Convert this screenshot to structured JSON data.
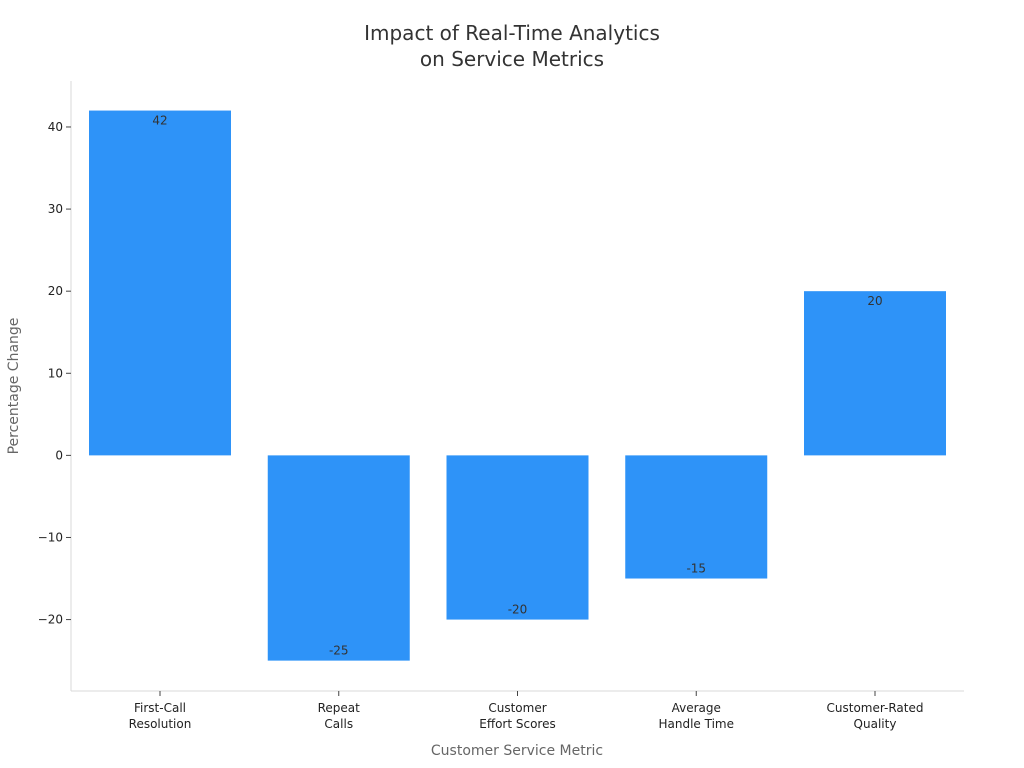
{
  "chart_data": {
    "type": "bar",
    "title_lines": [
      "Impact of Real-Time Analytics",
      "on Service Metrics"
    ],
    "xlabel": "Customer Service Metric",
    "ylabel": "Percentage Change",
    "categories": [
      [
        "First-Call",
        "Resolution"
      ],
      [
        "Repeat",
        "Calls"
      ],
      [
        "Customer",
        "Effort Scores"
      ],
      [
        "Average",
        "Handle Time"
      ],
      [
        "Customer-Rated",
        "Quality"
      ]
    ],
    "values": [
      42,
      -25,
      -20,
      -15,
      20
    ],
    "data_labels": [
      "42",
      "-25",
      "-20",
      "-15",
      "20"
    ],
    "yticks": [
      -20,
      -10,
      0,
      10,
      20,
      30,
      40
    ],
    "ytick_labels": [
      "−20",
      "−10",
      "0",
      "10",
      "20",
      "30",
      "40"
    ],
    "ylim": [
      -28.7,
      45.6
    ],
    "bar_color": "#2e93f8",
    "grid": false,
    "legend": "none"
  }
}
